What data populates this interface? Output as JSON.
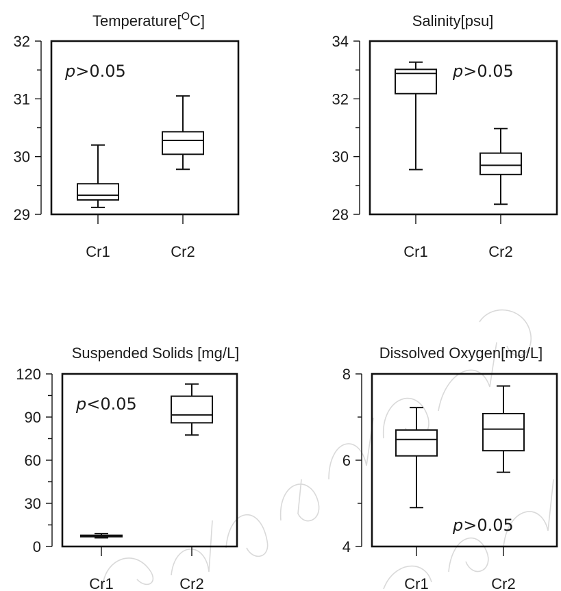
{
  "chart_data": [
    {
      "type": "box",
      "title": "Temperature[ºC]",
      "title_main": "Temperature[",
      "title_sup": "O",
      "title_tail": "C]",
      "categories": [
        "Cr1",
        "Cr2"
      ],
      "ylim": [
        29,
        32
      ],
      "yticks": [
        "29",
        "30",
        "31",
        "32"
      ],
      "annotation": {
        "sym": "p",
        "rest": ">0.05",
        "position": "top-left"
      },
      "boxes": [
        {
          "min": 29.12,
          "q1": 29.25,
          "median": 29.33,
          "q3": 29.53,
          "max": 30.2
        },
        {
          "min": 29.78,
          "q1": 30.04,
          "median": 30.28,
          "q3": 30.43,
          "max": 31.05
        }
      ]
    },
    {
      "type": "box",
      "title": "Salinity[psu]",
      "categories": [
        "Cr1",
        "Cr2"
      ],
      "ylim": [
        28,
        34
      ],
      "yticks": [
        "28",
        "30",
        "32",
        "34"
      ],
      "annotation": {
        "sym": "p",
        "rest": ">0.05",
        "position": "top-right"
      },
      "boxes": [
        {
          "min": 29.55,
          "q1": 32.18,
          "median": 32.88,
          "q3": 33.02,
          "max": 33.27
        },
        {
          "min": 28.35,
          "q1": 29.38,
          "median": 29.7,
          "q3": 30.12,
          "max": 30.97
        }
      ]
    },
    {
      "type": "box",
      "title": "Suspended Solids [mg/L]",
      "categories": [
        "Cr1",
        "Cr2"
      ],
      "ylim": [
        0,
        120
      ],
      "yticks": [
        "0",
        "30",
        "60",
        "90",
        "120"
      ],
      "annotation": {
        "sym": "p",
        "rest": "<0.05",
        "position": "top-left"
      },
      "boxes": [
        {
          "min": 6,
          "q1": 6.8,
          "median": 7.2,
          "q3": 7.8,
          "max": 9
        },
        {
          "min": 77.5,
          "q1": 86,
          "median": 91.5,
          "q3": 104.5,
          "max": 113
        }
      ]
    },
    {
      "type": "box",
      "title": "Dissolved Oxygen[mg/L]",
      "categories": [
        "Cr1",
        "Cr2"
      ],
      "ylim": [
        4,
        8
      ],
      "yticks": [
        "4",
        "6",
        "8"
      ],
      "annotation": {
        "sym": "p",
        "rest": ">0.05",
        "position": "bottom-right"
      },
      "boxes": [
        {
          "min": 4.9,
          "q1": 6.1,
          "median": 6.48,
          "q3": 6.7,
          "max": 7.22
        },
        {
          "min": 5.72,
          "q1": 6.22,
          "median": 6.72,
          "q3": 7.08,
          "max": 7.72
        }
      ]
    }
  ],
  "colors": {
    "ink": "#111111",
    "watermark": "#d9d9d9"
  }
}
